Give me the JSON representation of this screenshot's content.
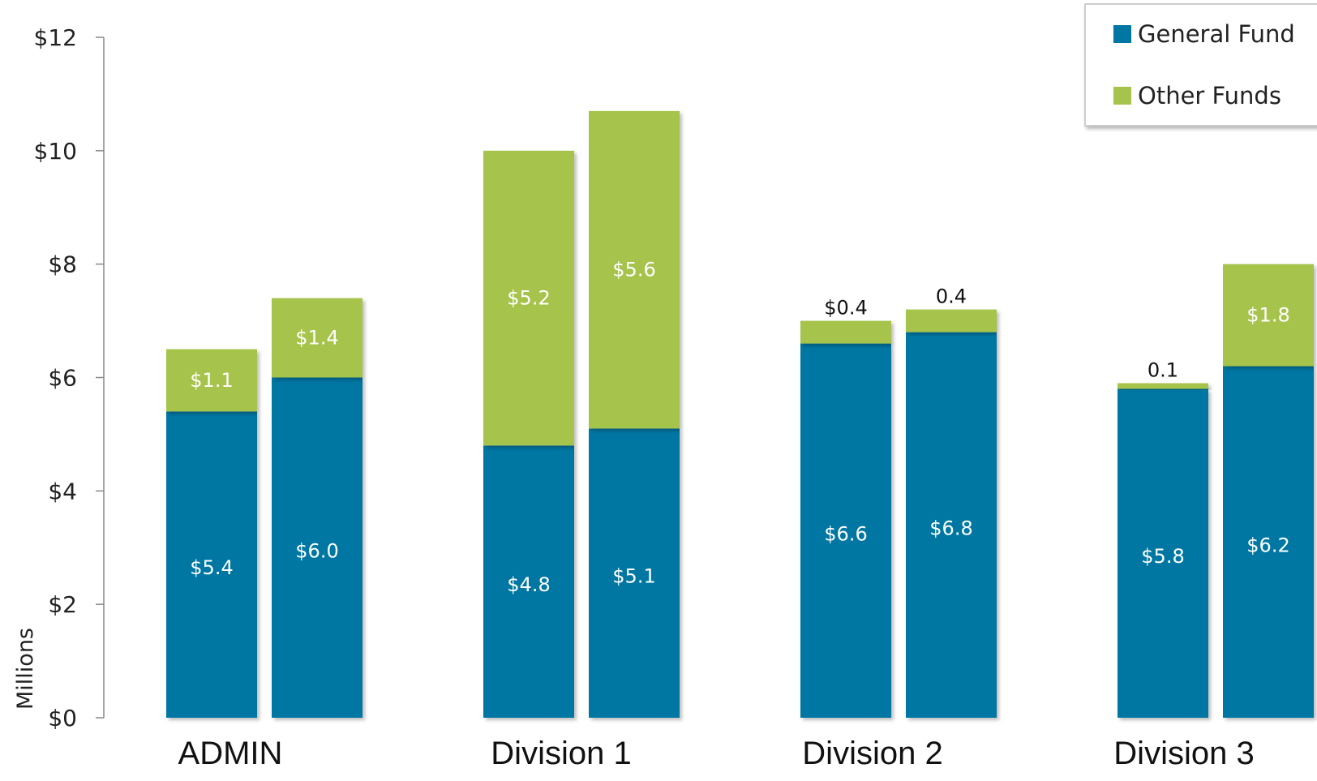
{
  "chart_data": {
    "type": "bar",
    "stacked": true,
    "categories": [
      "ADMIN",
      "Division 1",
      "Division 2",
      "Division 3"
    ],
    "bars_per_category": 2,
    "series": [
      {
        "name": "General Fund",
        "color": "#0077a3",
        "values": [
          [
            5.4,
            6.0
          ],
          [
            4.8,
            5.1
          ],
          [
            6.6,
            6.8
          ],
          [
            5.8,
            6.2
          ]
        ],
        "labels": [
          [
            "$5.4",
            "$6.0"
          ],
          [
            "$4.8",
            "$5.1"
          ],
          [
            "$6.6",
            "$6.8"
          ],
          [
            "$5.8",
            "$6.2"
          ]
        ]
      },
      {
        "name": "Other Funds",
        "color": "#a6c34c",
        "values": [
          [
            1.1,
            1.4
          ],
          [
            5.2,
            5.6
          ],
          [
            0.4,
            0.4
          ],
          [
            0.1,
            1.8
          ]
        ],
        "labels": [
          [
            "$1.1",
            "$1.4"
          ],
          [
            "$5.2",
            "$5.6"
          ],
          [
            "$0.4",
            "0.4"
          ],
          [
            "0.1",
            "$1.8"
          ]
        ]
      }
    ],
    "ylabel": "Millions",
    "ylim": [
      0,
      12
    ],
    "yticks": [
      0,
      2,
      4,
      6,
      8,
      10,
      12
    ],
    "ytick_labels": [
      "$0",
      "$2",
      "$4",
      "$6",
      "$8",
      "$10",
      "$12"
    ],
    "grid": false,
    "legend": {
      "position": "top-right",
      "entries": [
        "General Fund",
        "Other Funds"
      ]
    }
  }
}
